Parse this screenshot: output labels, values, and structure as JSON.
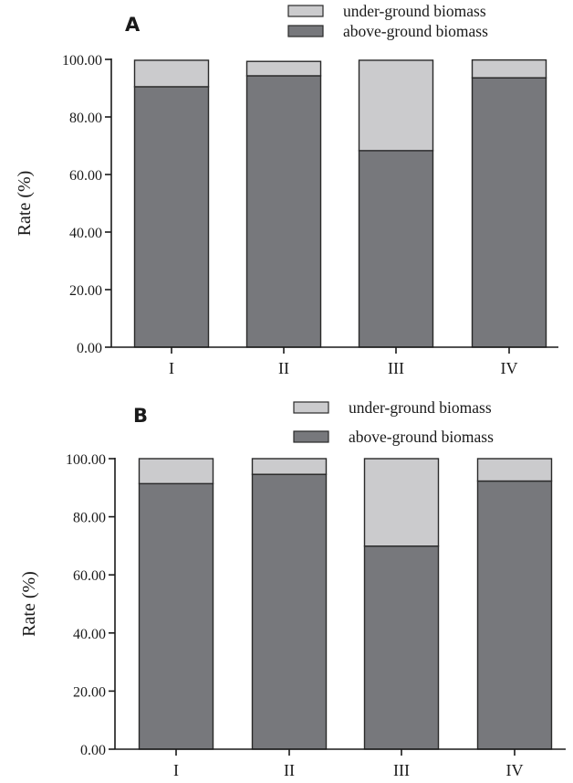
{
  "colors": {
    "above": "#77787c",
    "under": "#cbcbcd",
    "stroke": "#2a2a2a"
  },
  "chart_data": [
    {
      "type": "bar",
      "stacked": true,
      "panel": "A",
      "categories": [
        "I",
        "II",
        "III",
        "IV"
      ],
      "series": [
        {
          "name": "above-ground biomass",
          "values": [
            90.5,
            94.3,
            68.3,
            93.6
          ]
        },
        {
          "name": "under-ground biomass",
          "values": [
            9.2,
            5.0,
            31.4,
            6.2
          ]
        }
      ],
      "ylabel": "Rate (%)",
      "ylim": [
        0,
        100
      ],
      "yticks": [
        "0.00",
        "20.00",
        "40.00",
        "60.00",
        "80.00",
        "100.00"
      ],
      "legend_placement": "top-right",
      "grid": false
    },
    {
      "type": "bar",
      "stacked": true,
      "panel": "B",
      "categories": [
        "I",
        "II",
        "III",
        "IV"
      ],
      "series": [
        {
          "name": "above-ground biomass",
          "values": [
            91.4,
            94.6,
            69.9,
            92.3
          ]
        },
        {
          "name": "under-ground biomass",
          "values": [
            8.6,
            5.4,
            30.1,
            7.7
          ]
        }
      ],
      "ylabel": "Rate (%)",
      "ylim": [
        0,
        100
      ],
      "yticks": [
        "0.00",
        "20.00",
        "40.00",
        "60.00",
        "80.00",
        "100.00"
      ],
      "legend_placement": "top-right",
      "grid": false
    }
  ]
}
